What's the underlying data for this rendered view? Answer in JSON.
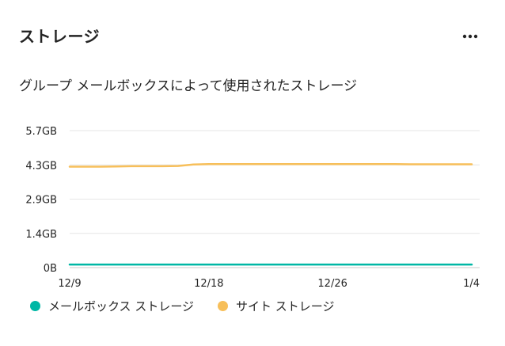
{
  "card": {
    "title": "ストレージ",
    "subtitle": "グループ メールボックスによって使用されたストレージ",
    "more_icon": "more-horizontal-icon"
  },
  "legend": [
    {
      "label": "メールボックス ストレージ",
      "color": "#00b7a5"
    },
    {
      "label": "サイト ストレージ",
      "color": "#f7bf5a"
    }
  ],
  "chart_data": {
    "type": "line",
    "x_tick_labels": [
      "12/9",
      "12/18",
      "12/26",
      "1/4"
    ],
    "y_tick_labels": [
      "5.7GB",
      "4.3GB",
      "2.9GB",
      "1.4GB",
      "0B"
    ],
    "ylim": [
      0,
      5.7
    ],
    "y_unit": "GB",
    "grid": true,
    "legend_position": "bottom-left",
    "x": [
      "12/9",
      "12/10",
      "12/11",
      "12/12",
      "12/13",
      "12/14",
      "12/15",
      "12/16",
      "12/17",
      "12/18",
      "12/19",
      "12/20",
      "12/21",
      "12/22",
      "12/23",
      "12/24",
      "12/25",
      "12/26",
      "12/27",
      "12/28",
      "12/29",
      "12/30",
      "12/31",
      "1/1",
      "1/2",
      "1/3",
      "1/4"
    ],
    "series": [
      {
        "name": "メールボックス ストレージ",
        "color": "#00b7a5",
        "values": [
          0.13,
          0.13,
          0.13,
          0.13,
          0.13,
          0.13,
          0.13,
          0.13,
          0.13,
          0.13,
          0.13,
          0.13,
          0.13,
          0.13,
          0.13,
          0.13,
          0.13,
          0.13,
          0.13,
          0.13,
          0.13,
          0.13,
          0.13,
          0.13,
          0.13,
          0.13,
          0.13
        ]
      },
      {
        "name": "サイト ストレージ",
        "color": "#f7bf5a",
        "values": [
          4.2,
          4.2,
          4.2,
          4.21,
          4.22,
          4.22,
          4.22,
          4.23,
          4.29,
          4.31,
          4.31,
          4.31,
          4.31,
          4.31,
          4.31,
          4.31,
          4.31,
          4.31,
          4.31,
          4.31,
          4.31,
          4.31,
          4.3,
          4.3,
          4.3,
          4.3,
          4.3
        ]
      }
    ]
  }
}
